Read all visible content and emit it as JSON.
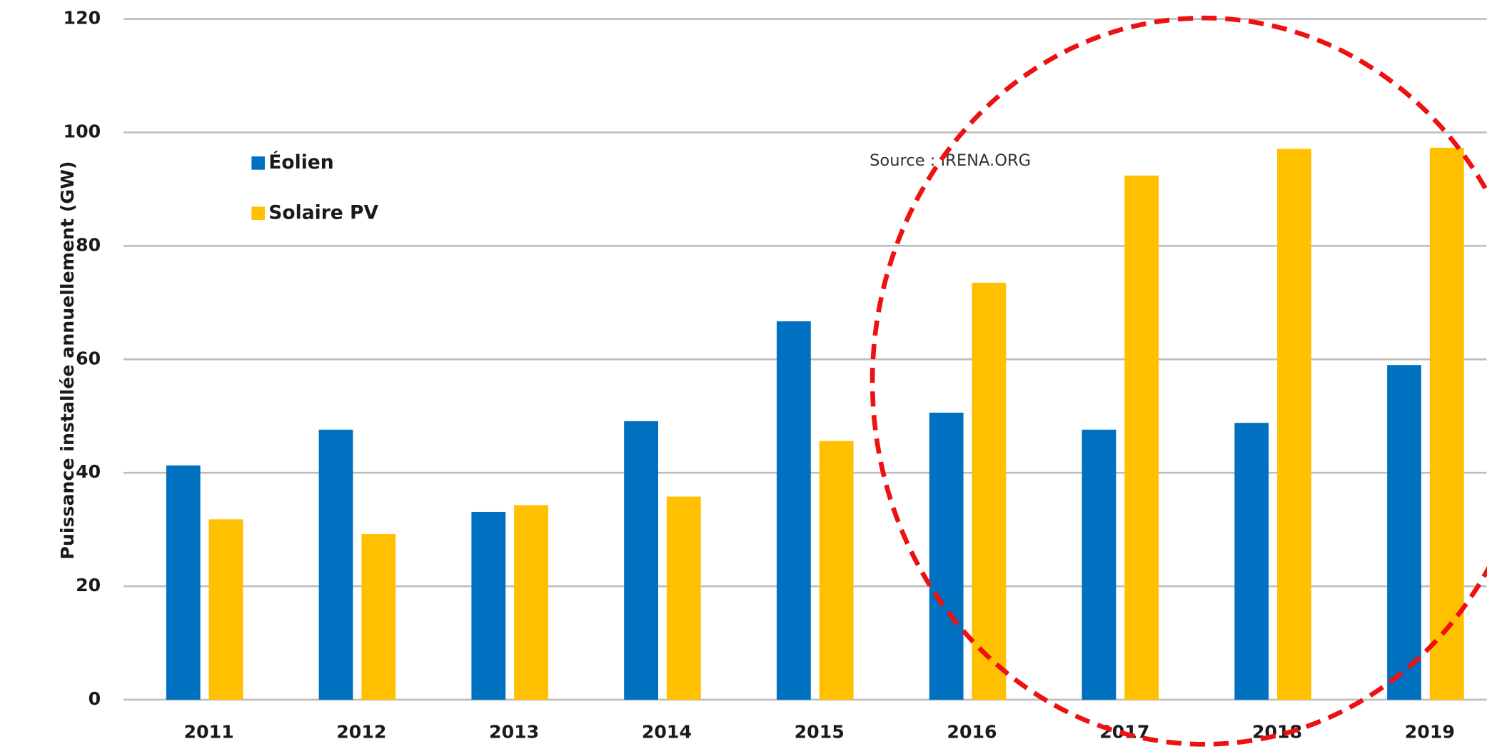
{
  "chart_data": {
    "type": "bar",
    "y_label": "Puissance installée annuellement (GW)",
    "annotation": "Source : IRENA.ORG",
    "categories": [
      "2011",
      "2012",
      "2013",
      "2014",
      "2015",
      "2016",
      "2017",
      "2018",
      "2019"
    ],
    "series": [
      {
        "name": "Éolien",
        "color": "#0070c0",
        "values": [
          41.3,
          47.6,
          33.1,
          49.1,
          66.7,
          50.6,
          47.6,
          48.8,
          59
        ]
      },
      {
        "name": "Solaire PV",
        "color": "#ffc000",
        "values": [
          31.8,
          29.2,
          34.3,
          35.8,
          45.6,
          73.5,
          92.4,
          97.1,
          97.3
        ]
      }
    ],
    "ylim": [
      0,
      120
    ],
    "yticks": [
      0,
      20,
      40,
      60,
      80,
      100,
      120
    ],
    "grid": true
  }
}
